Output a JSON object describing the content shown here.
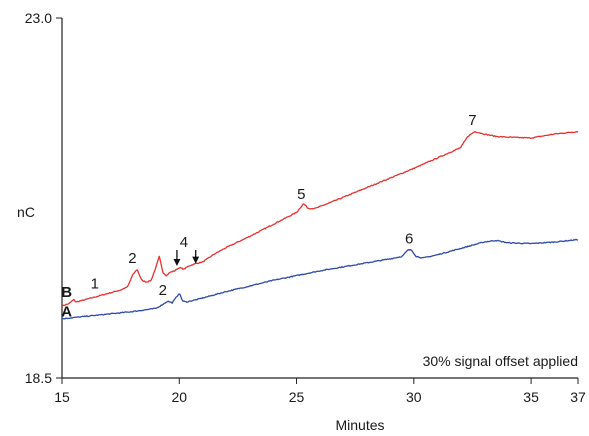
{
  "chart_data": {
    "type": "line",
    "title": "",
    "xlabel": "Minutes",
    "ylabel": "nC",
    "xlim": [
      15,
      37
    ],
    "ylim": [
      18.5,
      23.0
    ],
    "x_ticks": [
      {
        "value": 15,
        "label": "15"
      },
      {
        "value": 20,
        "label": "20"
      },
      {
        "value": 25,
        "label": "25"
      },
      {
        "value": 30,
        "label": "30"
      },
      {
        "value": 35,
        "label": "35"
      },
      {
        "value": 37,
        "label": "37"
      }
    ],
    "y_ticks": [
      {
        "value": 23.0,
        "label": "23.0"
      },
      {
        "value": 18.5,
        "label": "18.5"
      }
    ],
    "grid": false,
    "series": [
      {
        "name": "B",
        "color": "#e8302f",
        "x": [
          15.0,
          15.3,
          15.5,
          15.6,
          16.0,
          16.5,
          17.0,
          17.5,
          17.8,
          18.0,
          18.2,
          18.4,
          18.6,
          18.8,
          19.0,
          19.15,
          19.3,
          19.45,
          19.6,
          19.8,
          20.0,
          20.2,
          20.4,
          20.7,
          21.0,
          21.5,
          22.0,
          23.0,
          24.0,
          25.0,
          25.3,
          25.5,
          25.8,
          26.5,
          28.0,
          30.0,
          32.0,
          32.3,
          32.6,
          33.0,
          33.5,
          34.0,
          35.0,
          36.0,
          37.0
        ],
        "values": [
          19.4,
          19.43,
          19.48,
          19.45,
          19.48,
          19.52,
          19.56,
          19.6,
          19.64,
          19.78,
          19.86,
          19.72,
          19.7,
          19.72,
          19.88,
          20.02,
          19.82,
          19.78,
          19.82,
          19.84,
          19.88,
          19.86,
          19.9,
          19.93,
          19.95,
          20.05,
          20.13,
          20.27,
          20.42,
          20.57,
          20.68,
          20.62,
          20.62,
          20.7,
          20.88,
          21.12,
          21.38,
          21.52,
          21.58,
          21.55,
          21.52,
          21.51,
          21.5,
          21.55,
          21.58
        ]
      },
      {
        "name": "A",
        "color": "#2e4aa8",
        "x": [
          15.0,
          16.0,
          17.0,
          18.0,
          19.0,
          19.3,
          19.5,
          19.7,
          19.85,
          20.0,
          20.15,
          20.3,
          20.6,
          21.0,
          22.0,
          23.0,
          24.0,
          25.0,
          26.0,
          27.0,
          28.0,
          29.0,
          29.5,
          29.75,
          29.9,
          30.1,
          30.4,
          31.0,
          32.0,
          33.0,
          33.5,
          34.0,
          35.0,
          36.0,
          37.0
        ],
        "values": [
          19.24,
          19.27,
          19.3,
          19.33,
          19.37,
          19.42,
          19.46,
          19.44,
          19.5,
          19.56,
          19.46,
          19.45,
          19.47,
          19.5,
          19.58,
          19.65,
          19.72,
          19.78,
          19.84,
          19.89,
          19.94,
          19.99,
          20.02,
          20.1,
          20.1,
          20.02,
          20.0,
          20.04,
          20.12,
          20.2,
          20.22,
          20.19,
          20.18,
          20.2,
          20.23
        ]
      }
    ],
    "trace_labels": [
      {
        "text": "B",
        "x": 15.2,
        "y": 19.51
      },
      {
        "text": "A",
        "x": 15.2,
        "y": 19.27
      }
    ],
    "peak_labels": [
      {
        "text": "1",
        "x": 16.4,
        "y": 19.62
      },
      {
        "text": "2",
        "x": 18.0,
        "y": 19.94
      },
      {
        "text": "4",
        "x": 20.2,
        "y": 20.14
      },
      {
        "text": "5",
        "x": 25.2,
        "y": 20.74
      },
      {
        "text": "7",
        "x": 32.5,
        "y": 21.66
      },
      {
        "text": "2",
        "x": 19.3,
        "y": 19.54
      },
      {
        "text": "6",
        "x": 29.8,
        "y": 20.18
      }
    ],
    "arrows": [
      {
        "x": 19.9,
        "y_from": 20.1,
        "y_to": 19.9
      },
      {
        "x": 20.7,
        "y_from": 20.1,
        "y_to": 19.93
      }
    ],
    "annotation": "30% signal offset applied"
  }
}
